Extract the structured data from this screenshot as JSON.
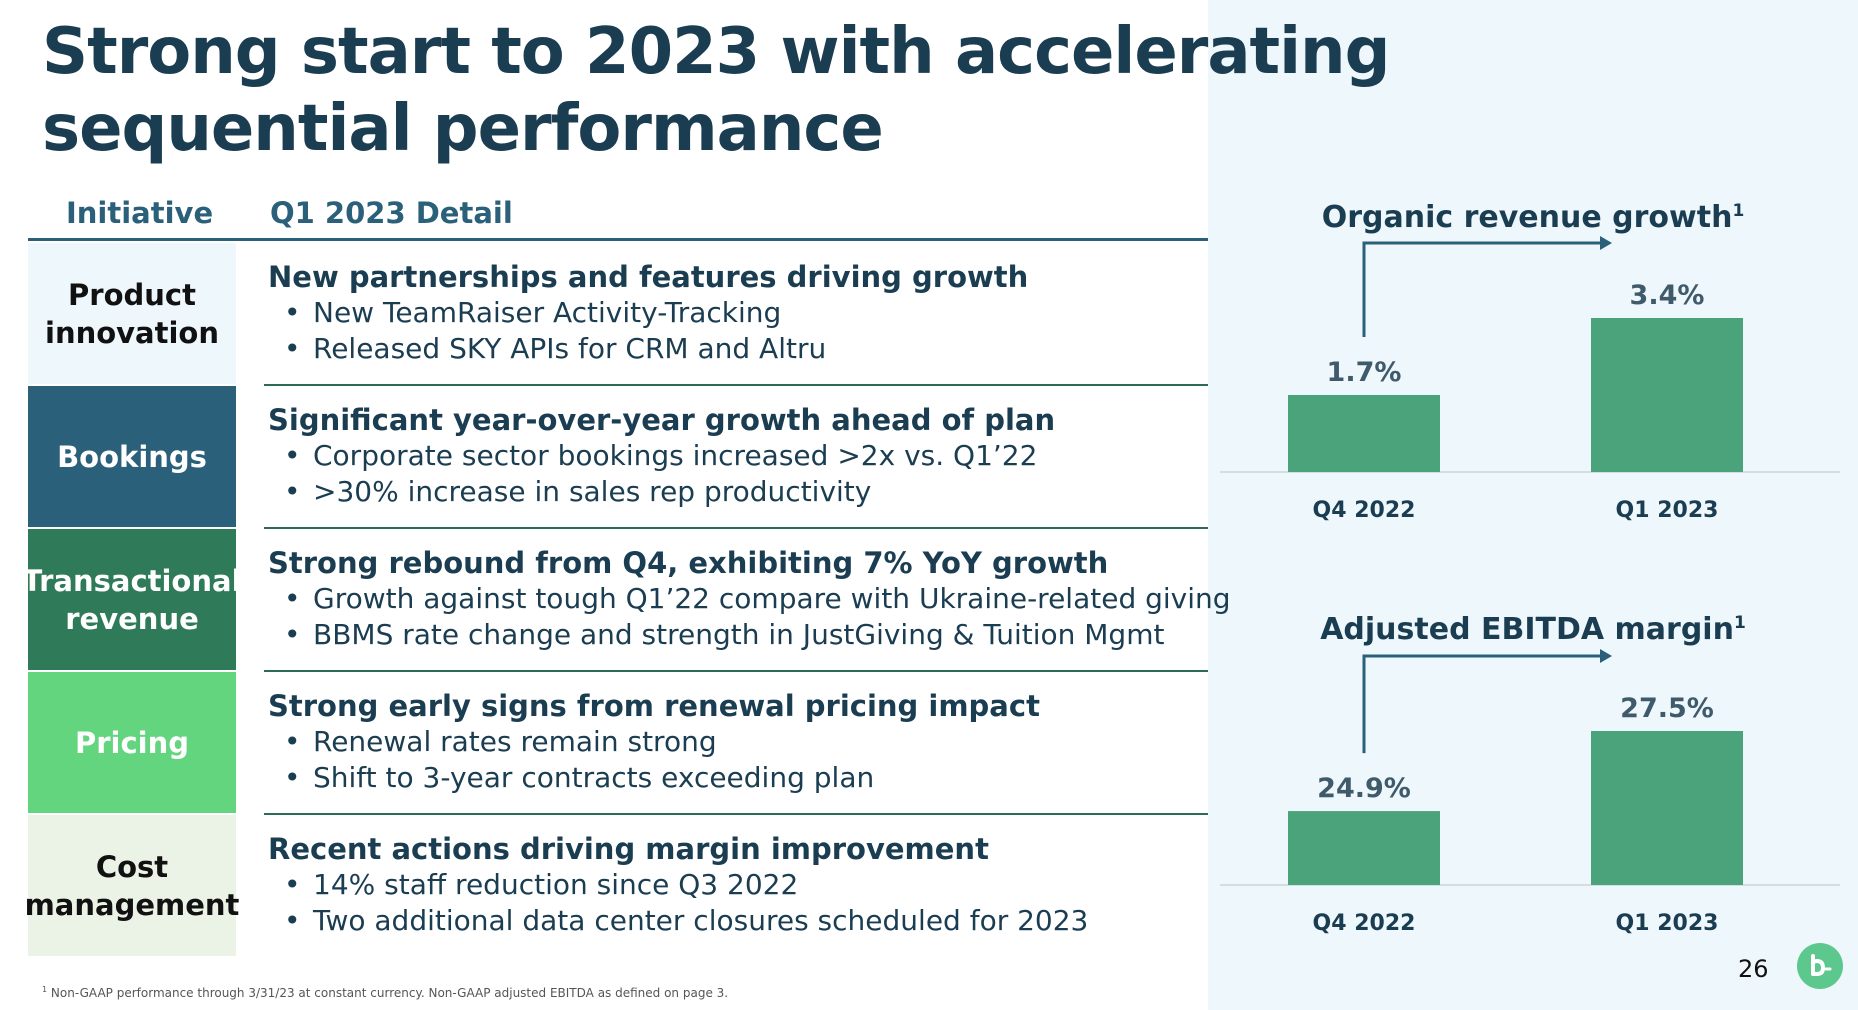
{
  "title": "Strong start to 2023 with accelerating sequential performance",
  "table": {
    "col_initiative": "Initiative",
    "col_detail": "Q1 2023 Detail",
    "rows": [
      {
        "label": "Product innovation",
        "label_bg": "#eef7fb",
        "label_color": "#111111",
        "heading": "New partnerships and features driving growth",
        "bullets": [
          "New TeamRaiser Activity-Tracking",
          "Released SKY APIs for CRM and Altru"
        ]
      },
      {
        "label": "Bookings",
        "label_bg": "#2a607a",
        "label_color": "#ffffff",
        "heading": "Significant year-over-year growth ahead of plan",
        "bullets": [
          "Corporate sector bookings increased >2x vs. Q1’22",
          ">30% increase in sales rep productivity"
        ]
      },
      {
        "label": "Transactional revenue",
        "label_bg": "#2f7a59",
        "label_color": "#ffffff",
        "heading": "Strong rebound from Q4, exhibiting 7% YoY growth",
        "bullets": [
          "Growth against tough Q1’22 compare with Ukraine-related giving",
          "BBMS rate change and strength in JustGiving & Tuition Mgmt"
        ]
      },
      {
        "label": "Pricing",
        "label_bg": "#62d57e",
        "label_color": "#ffffff",
        "heading": "Strong early signs from renewal pricing impact",
        "bullets": [
          "Renewal rates remain strong",
          "Shift to 3-year contracts exceeding plan"
        ]
      },
      {
        "label": "Cost management",
        "label_bg": "#ebf3e6",
        "label_color": "#111111",
        "heading": "Recent actions driving margin improvement",
        "bullets": [
          "14% staff reduction since Q3 2022",
          "Two additional data center closures scheduled for 2023"
        ]
      }
    ]
  },
  "chart_data": [
    {
      "type": "bar",
      "title": "Organic revenue growth",
      "title_sup": "1",
      "categories": [
        "Q4 2022",
        "Q1 2023"
      ],
      "values": [
        1.7,
        3.4
      ],
      "value_labels": [
        "1.7%",
        "3.4%"
      ],
      "unit": "%",
      "ylim": [
        0,
        3.4
      ],
      "bar_color": "#4aa37a",
      "arrow_color": "#2a607a",
      "grid": false,
      "legend": "none"
    },
    {
      "type": "bar",
      "title": "Adjusted EBITDA margin",
      "title_sup": "1",
      "categories": [
        "Q4 2022",
        "Q1 2023"
      ],
      "values": [
        24.9,
        27.5
      ],
      "value_labels": [
        "24.9%",
        "27.5%"
      ],
      "unit": "%",
      "ylim": [
        22.5,
        27.5
      ],
      "bar_color": "#4aa37a",
      "arrow_color": "#2a607a",
      "grid": false,
      "legend": "none"
    }
  ],
  "footnote": {
    "marker": "1",
    "text": "Non-GAAP performance through 3/31/23 at constant currency. Non-GAAP adjusted EBITDA as defined on page 3."
  },
  "page_number": "26",
  "logo_icon": "blackbaud-logo-icon",
  "colors": {
    "navy": "#1b3d52",
    "teal": "#2a607a",
    "panel": "#eef7fb",
    "logo": "#5cc88e"
  }
}
